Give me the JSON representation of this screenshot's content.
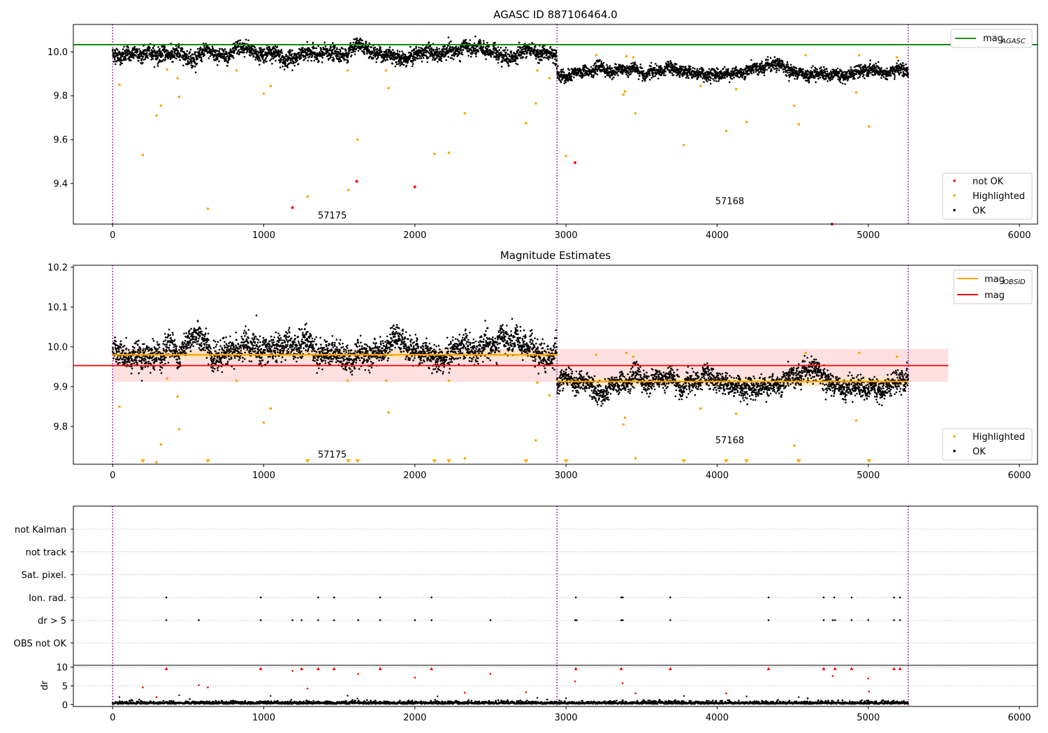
{
  "colors": {
    "ok": "#000000",
    "highlighted": "#ffa500",
    "not_ok": "#ff0000",
    "agasc_line": "#008000",
    "mag_line": "#ff0000",
    "obsid_line": "#ffa500",
    "mag_band": "#ffdddd",
    "obsid_band": "#ffe5c0",
    "obs_boundary": "#800080",
    "grid": "#b0b0b0"
  },
  "chart_data": [
    {
      "type": "scatter",
      "title": "AGASC ID 887106464.0",
      "xlim": [
        -260,
        6120
      ],
      "ylim": [
        9.215,
        10.125
      ],
      "xticks": [
        "0",
        "1000",
        "2000",
        "3000",
        "4000",
        "5000",
        "6000"
      ],
      "yticks": [
        "9.4",
        "9.6",
        "9.8",
        "10.0"
      ],
      "obs_boundaries": [
        0,
        2940,
        5265
      ],
      "obs_labels": [
        {
          "text": "57175",
          "x": 1370,
          "y": 9.24
        },
        {
          "text": "57168",
          "x": 4000,
          "y": 9.305
        }
      ],
      "agasc_mag": 10.033,
      "agasc_legend": {
        "name": "mag",
        "sub": "AGASC"
      },
      "legend_points": [
        "not OK",
        "Highlighted",
        "OK"
      ],
      "ok_segments": [
        {
          "x0": 0,
          "x1": 2940,
          "mean": 9.99,
          "sd": 0.022
        },
        {
          "x0": 2940,
          "x1": 5265,
          "mean": 9.91,
          "sd": 0.017
        }
      ],
      "highlighted_points": [
        [
          45,
          9.85
        ],
        [
          200,
          9.53
        ],
        [
          290,
          9.71
        ],
        [
          320,
          9.755
        ],
        [
          360,
          9.92
        ],
        [
          430,
          9.88
        ],
        [
          440,
          9.795
        ],
        [
          630,
          9.285
        ],
        [
          820,
          9.915
        ],
        [
          1000,
          9.81
        ],
        [
          1045,
          9.845
        ],
        [
          1290,
          9.34
        ],
        [
          1555,
          9.915
        ],
        [
          1560,
          9.37
        ],
        [
          1620,
          9.6
        ],
        [
          1810,
          9.915
        ],
        [
          1825,
          9.835
        ],
        [
          2130,
          9.535
        ],
        [
          2225,
          9.54
        ],
        [
          2330,
          9.72
        ],
        [
          2735,
          9.675
        ],
        [
          2800,
          9.765
        ],
        [
          2810,
          9.915
        ],
        [
          2890,
          9.88
        ],
        [
          3000,
          9.525
        ],
        [
          3200,
          9.985
        ],
        [
          3380,
          9.805
        ],
        [
          3390,
          9.82
        ],
        [
          3400,
          9.98
        ],
        [
          3445,
          9.975
        ],
        [
          3460,
          9.72
        ],
        [
          3780,
          9.575
        ],
        [
          3890,
          9.845
        ],
        [
          4060,
          9.64
        ],
        [
          4125,
          9.83
        ],
        [
          4195,
          9.68
        ],
        [
          4510,
          9.755
        ],
        [
          4540,
          9.67
        ],
        [
          4585,
          9.985
        ],
        [
          4920,
          9.815
        ],
        [
          4940,
          9.985
        ],
        [
          5005,
          9.66
        ],
        [
          5190,
          9.975
        ]
      ],
      "not_ok_points": [
        [
          1190,
          9.29
        ],
        [
          1615,
          9.41
        ],
        [
          2000,
          9.385
        ],
        [
          3060,
          9.495
        ],
        [
          4760,
          9.215
        ]
      ]
    },
    {
      "type": "scatter",
      "title": "Magnitude Estimates",
      "xlim": [
        -260,
        6120
      ],
      "ylim": [
        9.705,
        10.205
      ],
      "xticks": [
        "0",
        "1000",
        "2000",
        "3000",
        "4000",
        "5000",
        "6000"
      ],
      "yticks": [
        "9.8",
        "9.9",
        "10.0",
        "10.1",
        "10.2"
      ],
      "obs_boundaries": [
        0,
        2940,
        5265
      ],
      "obs_labels": [
        {
          "text": "57175",
          "x": 1370,
          "y": 9.722
        },
        {
          "text": "57168",
          "x": 4000,
          "y": 9.758
        }
      ],
      "mag": 9.953,
      "mag_band": [
        9.912,
        9.995
      ],
      "mag_band_x": [
        0,
        5530
      ],
      "obsid_mag": [
        {
          "x0": 0,
          "x1": 2940,
          "mag": 9.98
        },
        {
          "x0": 2940,
          "x1": 5265,
          "mag": 9.913
        }
      ],
      "legend_lines": [
        {
          "name": "mag",
          "sub": "OBSID"
        },
        {
          "name": "mag",
          "sub": ""
        }
      ],
      "legend_points": [
        "Highlighted",
        "OK"
      ],
      "ok_segments": [
        {
          "x0": 0,
          "x1": 2940,
          "mean": 9.99,
          "sd": 0.022
        },
        {
          "x0": 2940,
          "x1": 5265,
          "mean": 9.91,
          "sd": 0.017
        }
      ],
      "highlighted_points": [
        [
          45,
          9.85
        ],
        [
          290,
          9.71
        ],
        [
          320,
          9.755
        ],
        [
          360,
          9.92
        ],
        [
          430,
          9.875
        ],
        [
          440,
          9.793
        ],
        [
          820,
          9.915
        ],
        [
          1000,
          9.81
        ],
        [
          1045,
          9.845
        ],
        [
          1555,
          9.915
        ],
        [
          1810,
          9.915
        ],
        [
          1825,
          9.835
        ],
        [
          2225,
          9.915
        ],
        [
          2330,
          9.72
        ],
        [
          2800,
          9.765
        ],
        [
          2810,
          9.91
        ],
        [
          2890,
          9.878
        ],
        [
          3200,
          9.98
        ],
        [
          3380,
          9.805
        ],
        [
          3390,
          9.822
        ],
        [
          3400,
          9.985
        ],
        [
          3445,
          9.975
        ],
        [
          3460,
          9.72
        ],
        [
          3890,
          9.845
        ],
        [
          4125,
          9.832
        ],
        [
          4510,
          9.752
        ],
        [
          4585,
          9.985
        ],
        [
          4920,
          9.815
        ],
        [
          4940,
          9.985
        ],
        [
          5190,
          9.975
        ]
      ],
      "below_range_x": [
        200,
        630,
        1290,
        1560,
        1620,
        2130,
        2225,
        2735,
        3000,
        3780,
        4060,
        4195,
        4540,
        5005
      ]
    },
    {
      "type": "scatter",
      "title": "",
      "flags": [
        "not Kalman",
        "not track",
        "Sat. pixel.",
        "Ion. rad.",
        "dr > 5",
        "OBS not OK"
      ],
      "flag_points": {
        "Ion. rad.": [
          355,
          980,
          1360,
          1465,
          1770,
          2110,
          3065,
          3365,
          3375,
          3690,
          4340,
          4705,
          4775,
          4890,
          5170,
          5210
        ],
        "dr > 5": [
          355,
          570,
          980,
          1190,
          1250,
          1360,
          1465,
          1625,
          1770,
          2000,
          2110,
          2500,
          3060,
          3070,
          3365,
          3375,
          3690,
          4340,
          4705,
          4765,
          4780,
          4890,
          5000,
          5170,
          5210
        ]
      },
      "dr_ylabel": "dr",
      "dr_yticks": [
        "0",
        "5",
        "10"
      ],
      "dr_ylim": [
        -0.5,
        10.5
      ],
      "xlim": [
        -260,
        6120
      ],
      "xticks": [
        "0",
        "1000",
        "2000",
        "3000",
        "4000",
        "5000",
        "6000"
      ],
      "obs_boundaries": [
        0,
        2940,
        5265
      ],
      "dr_red_points": [
        [
          200,
          4.6
        ],
        [
          290,
          2.0
        ],
        [
          355,
          9.6
        ],
        [
          570,
          5.2
        ],
        [
          630,
          4.6
        ],
        [
          980,
          9.6
        ],
        [
          1190,
          9.0
        ],
        [
          1250,
          9.6
        ],
        [
          1290,
          4.3
        ],
        [
          1360,
          9.6
        ],
        [
          1465,
          9.6
        ],
        [
          1625,
          8.2
        ],
        [
          1770,
          9.6
        ],
        [
          2000,
          7.2
        ],
        [
          2110,
          9.6
        ],
        [
          2330,
          3.2
        ],
        [
          2500,
          8.2
        ],
        [
          2735,
          3.3
        ],
        [
          3060,
          6.2
        ],
        [
          3065,
          9.6
        ],
        [
          3365,
          9.6
        ],
        [
          3375,
          5.7
        ],
        [
          3460,
          3.0
        ],
        [
          3690,
          9.6
        ],
        [
          4060,
          3.0
        ],
        [
          4340,
          9.6
        ],
        [
          4705,
          9.6
        ],
        [
          4765,
          7.6
        ],
        [
          4780,
          9.6
        ],
        [
          4890,
          9.6
        ],
        [
          5000,
          7.0
        ],
        [
          5005,
          3.5
        ],
        [
          5170,
          9.6
        ],
        [
          5210,
          9.6
        ]
      ],
      "dr_black_outliers": [
        [
          45,
          2.0
        ],
        [
          440,
          2.5
        ],
        [
          1045,
          2.3
        ],
        [
          1555,
          2.4
        ],
        [
          1620,
          1.6
        ],
        [
          2150,
          2.2
        ],
        [
          2810,
          1.8
        ],
        [
          3000,
          1.7
        ],
        [
          3780,
          2.3
        ],
        [
          4195,
          2.2
        ],
        [
          4540,
          2.0
        ]
      ]
    }
  ]
}
